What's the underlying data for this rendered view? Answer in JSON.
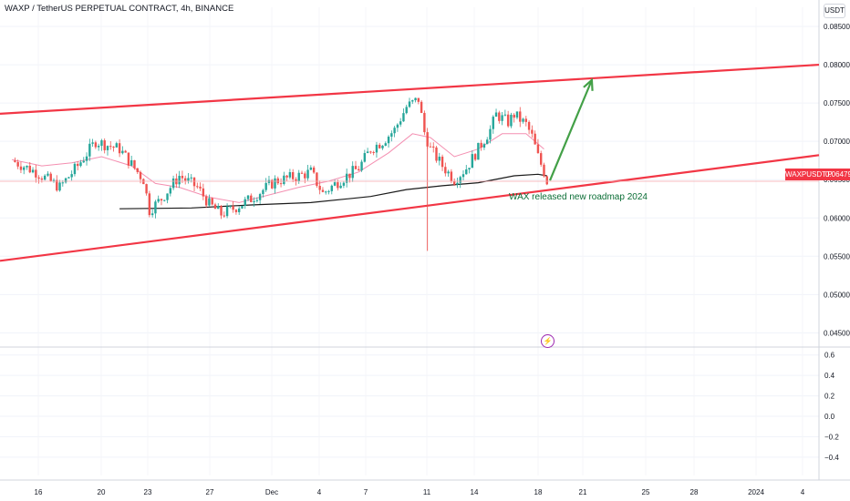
{
  "header": {
    "title": "WAXP / TetherUS PERPETUAL CONTRACT, 4h, BINANCE",
    "unit": "USDT"
  },
  "price_tag": {
    "symbol": "WAXPUSDT.P",
    "value": "0.06479"
  },
  "annotation": "WAX released new roadmap 2024",
  "icons": {
    "event": "lightning-bolt-icon"
  },
  "colors": {
    "up": "#26a69a",
    "down": "#ef5350",
    "trendline": "#f23645",
    "arrow": "#43a047",
    "ma_fast": "#f48fb1",
    "ma_slow": "#1a1a1a",
    "annotation": "#0b6e36",
    "event": "#9c27b0"
  },
  "chart_data": {
    "type": "candlestick",
    "timeframe": "4h",
    "y_ticks": [
      "0.08500",
      "0.08000",
      "0.07500",
      "0.07000",
      "0.06500",
      "0.06000",
      "0.05500",
      "0.05000",
      "0.04500"
    ],
    "ylim": [
      0.0435,
      0.0875
    ],
    "x_ticks": [
      "16",
      "20",
      "23",
      "27",
      "Dec",
      "4",
      "7",
      "11",
      "14",
      "18",
      "21",
      "25",
      "28",
      "2024",
      "4"
    ],
    "last_price": 0.06479,
    "close_path": [
      [
        0,
        0.0675
      ],
      [
        4,
        0.066
      ],
      [
        8,
        0.064
      ],
      [
        11,
        0.0668
      ],
      [
        14,
        0.07
      ],
      [
        18,
        0.069
      ],
      [
        22,
        0.065
      ],
      [
        23,
        0.061
      ],
      [
        25,
        0.0625
      ],
      [
        28,
        0.0655
      ],
      [
        31,
        0.064
      ],
      [
        33,
        0.0618
      ],
      [
        35,
        0.0605
      ],
      [
        37,
        0.0612
      ],
      [
        40,
        0.0625
      ],
      [
        44,
        0.0648
      ],
      [
        48,
        0.0655
      ],
      [
        50,
        0.066
      ],
      [
        52,
        0.0632
      ],
      [
        55,
        0.065
      ],
      [
        58,
        0.0665
      ],
      [
        60,
        0.069
      ],
      [
        62,
        0.07
      ],
      [
        64,
        0.0715
      ],
      [
        66,
        0.0745
      ],
      [
        68,
        0.0755
      ],
      [
        69,
        0.0712
      ],
      [
        70,
        0.069
      ],
      [
        72,
        0.0668
      ],
      [
        74,
        0.065
      ],
      [
        76,
        0.0665
      ],
      [
        78,
        0.069
      ],
      [
        80,
        0.0715
      ],
      [
        81,
        0.0735
      ],
      [
        83,
        0.0725
      ],
      [
        84,
        0.0735
      ],
      [
        86,
        0.0722
      ],
      [
        87,
        0.0706
      ],
      [
        88,
        0.068
      ],
      [
        89,
        0.066
      ],
      [
        89.5,
        0.0648
      ]
    ],
    "ma_fast": [
      [
        0,
        0.0676
      ],
      [
        5,
        0.0668
      ],
      [
        10,
        0.0672
      ],
      [
        15,
        0.068
      ],
      [
        20,
        0.0668
      ],
      [
        24,
        0.0645
      ],
      [
        28,
        0.064
      ],
      [
        33,
        0.0627
      ],
      [
        38,
        0.062
      ],
      [
        43,
        0.063
      ],
      [
        48,
        0.064
      ],
      [
        53,
        0.0648
      ],
      [
        58,
        0.066
      ],
      [
        63,
        0.0685
      ],
      [
        67,
        0.071
      ],
      [
        70,
        0.0705
      ],
      [
        74,
        0.068
      ],
      [
        78,
        0.069
      ],
      [
        82,
        0.071
      ],
      [
        86,
        0.071
      ],
      [
        89,
        0.069
      ]
    ],
    "ma_slow": [
      [
        18,
        0.0612
      ],
      [
        30,
        0.0613
      ],
      [
        40,
        0.0617
      ],
      [
        50,
        0.062
      ],
      [
        60,
        0.0628
      ],
      [
        66,
        0.0637
      ],
      [
        72,
        0.0642
      ],
      [
        78,
        0.0646
      ],
      [
        84,
        0.0655
      ],
      [
        88,
        0.0657
      ],
      [
        89.5,
        0.0655
      ]
    ],
    "wicks": [
      {
        "t": 69.5,
        "high": 0.0705,
        "low": 0.0557
      }
    ],
    "trendlines": [
      {
        "name": "channel-top",
        "from": [
          -2,
          0.0736
        ],
        "to": [
          135,
          0.08
        ]
      },
      {
        "name": "channel-bottom",
        "from": [
          -2,
          0.0544
        ],
        "to": [
          135,
          0.0682
        ]
      }
    ],
    "projection_arrow": {
      "from": [
        90,
        0.0649
      ],
      "to": [
        97,
        0.078
      ]
    },
    "indicator": {
      "ylim": [
        -0.58,
        0.66
      ],
      "y_ticks": [
        "0.6",
        "0.4",
        "0.2",
        "0.0",
        "−0.2",
        "−0.4"
      ]
    }
  }
}
